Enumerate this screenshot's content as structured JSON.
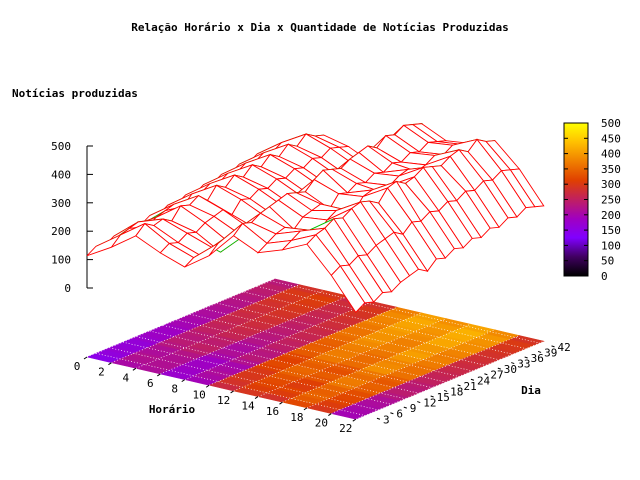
{
  "chart_data": {
    "type": "surface3d",
    "title": "Relação Horário x Dia x Quantidade de Notícias Produzidas",
    "zlabel": "Notícias produzidas",
    "xlabel": "Horário",
    "ylabel": "Dia",
    "x_ticks": [
      "0",
      "2",
      "4",
      "6",
      "8",
      "10",
      "12",
      "14",
      "16",
      "18",
      "20",
      "22"
    ],
    "y_ticks": [
      "3",
      "6",
      "9",
      "12",
      "15",
      "18",
      "21",
      "24",
      "27",
      "30",
      "33",
      "36",
      "39",
      "42"
    ],
    "z_ticks": [
      "0",
      "100",
      "200",
      "300",
      "400",
      "500"
    ],
    "colorbar_ticks": [
      "0",
      "50",
      "100",
      "150",
      "200",
      "250",
      "300",
      "350",
      "400",
      "450",
      "500"
    ],
    "xlim": [
      0,
      23
    ],
    "ylim": [
      1,
      43
    ],
    "zlim": [
      0,
      500
    ],
    "surface_colors": {
      "top": "#ff0000",
      "bottom": "#00c000"
    },
    "colorbar_colors": [
      "#000000",
      "#400060",
      "#8000ff",
      "#a000c0",
      "#c02060",
      "#e04000",
      "#f08000",
      "#ffc000",
      "#ffff00"
    ],
    "days": [
      1,
      3,
      5,
      7,
      9,
      11,
      13,
      15,
      17,
      19,
      21,
      23,
      25,
      27,
      29,
      31,
      33,
      35,
      37,
      39,
      41,
      43
    ],
    "hours": [
      0,
      2,
      4,
      6,
      8,
      10,
      12,
      14,
      16,
      18,
      20,
      22
    ],
    "z_values": [
      [
        110,
        160,
        220,
        180,
        150,
        210,
        300,
        260,
        290,
        330,
        240,
        130
      ],
      [
        130,
        190,
        250,
        200,
        170,
        240,
        330,
        280,
        310,
        350,
        260,
        150
      ],
      [
        120,
        200,
        230,
        190,
        160,
        250,
        320,
        300,
        330,
        360,
        250,
        140
      ],
      [
        140,
        210,
        240,
        210,
        180,
        260,
        340,
        310,
        320,
        380,
        270,
        160
      ],
      [
        130,
        180,
        220,
        200,
        150,
        230,
        350,
        290,
        300,
        370,
        260,
        150
      ],
      [
        150,
        200,
        260,
        220,
        170,
        250,
        360,
        320,
        330,
        390,
        280,
        170
      ],
      [
        140,
        210,
        250,
        230,
        190,
        270,
        370,
        330,
        350,
        400,
        290,
        180
      ],
      [
        160,
        220,
        270,
        240,
        200,
        280,
        360,
        340,
        340,
        390,
        300,
        190
      ],
      [
        150,
        200,
        240,
        210,
        180,
        260,
        350,
        310,
        320,
        370,
        280,
        170
      ],
      [
        170,
        230,
        280,
        250,
        210,
        290,
        380,
        350,
        360,
        410,
        310,
        200
      ],
      [
        160,
        220,
        260,
        240,
        200,
        280,
        400,
        340,
        370,
        420,
        300,
        190
      ],
      [
        180,
        240,
        290,
        260,
        220,
        300,
        390,
        360,
        350,
        400,
        320,
        210
      ],
      [
        170,
        230,
        270,
        250,
        210,
        290,
        380,
        350,
        360,
        410,
        310,
        200
      ],
      [
        190,
        250,
        300,
        270,
        230,
        310,
        400,
        370,
        380,
        430,
        330,
        220
      ],
      [
        180,
        240,
        280,
        260,
        220,
        300,
        410,
        360,
        390,
        420,
        320,
        210
      ],
      [
        200,
        260,
        310,
        280,
        240,
        320,
        420,
        380,
        370,
        410,
        340,
        230
      ],
      [
        190,
        250,
        290,
        270,
        230,
        310,
        400,
        370,
        380,
        430,
        330,
        220
      ],
      [
        210,
        270,
        320,
        290,
        250,
        330,
        430,
        390,
        400,
        440,
        350,
        240
      ],
      [
        200,
        260,
        300,
        280,
        240,
        320,
        420,
        380,
        390,
        420,
        340,
        230
      ],
      [
        220,
        280,
        330,
        300,
        260,
        340,
        440,
        400,
        410,
        450,
        360,
        250
      ],
      [
        210,
        270,
        310,
        290,
        250,
        330,
        430,
        390,
        400,
        430,
        350,
        240
      ],
      [
        200,
        260,
        300,
        280,
        240,
        320,
        420,
        380,
        390,
        420,
        340,
        230
      ]
    ]
  }
}
